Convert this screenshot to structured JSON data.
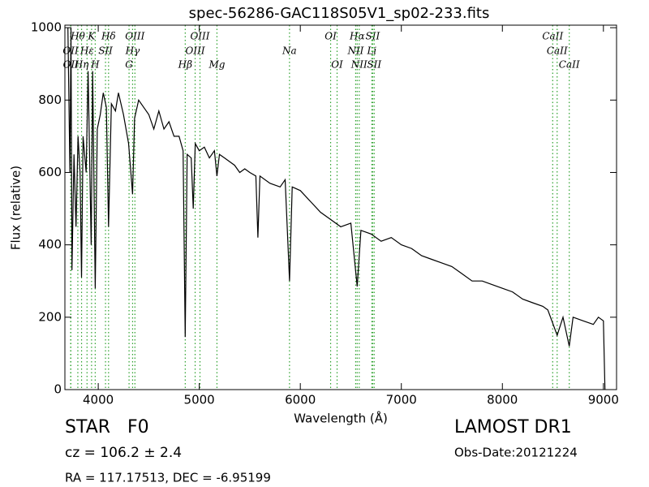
{
  "chart_data": {
    "type": "line",
    "title": "spec-56286-GAC118S05V1_sp02-233.fits",
    "x_label": "Wavelength (Å)",
    "y_label": "Flux (relative)",
    "xlim": [
      3670,
      9130
    ],
    "ylim": [
      0,
      1007
    ],
    "xticks": [
      4000,
      5000,
      6000,
      7000,
      8000,
      9000
    ],
    "yticks": [
      0,
      200,
      400,
      600,
      800,
      1000
    ],
    "series": [
      {
        "name": "Flux",
        "color": "#000000",
        "x": [
          3700,
          3720,
          3730,
          3740,
          3760,
          3780,
          3800,
          3820,
          3835,
          3850,
          3880,
          3900,
          3930,
          3945,
          3970,
          3990,
          4020,
          4050,
          4080,
          4102,
          4130,
          4170,
          4200,
          4250,
          4300,
          4340,
          4360,
          4400,
          4450,
          4500,
          4550,
          4600,
          4650,
          4700,
          4750,
          4800,
          4840,
          4861,
          4880,
          4920,
          4940,
          4960,
          5000,
          5050,
          5100,
          5150,
          5175,
          5200,
          5250,
          5300,
          5350,
          5400,
          5450,
          5500,
          5560,
          5580,
          5600,
          5700,
          5800,
          5850,
          5893,
          5920,
          6000,
          6100,
          6200,
          6300,
          6400,
          6500,
          6563,
          6600,
          6700,
          6800,
          6900,
          7000,
          7100,
          7200,
          7300,
          7400,
          7500,
          7600,
          7700,
          7800,
          7900,
          8000,
          8100,
          8200,
          8300,
          8400,
          8450,
          8542,
          8600,
          8662,
          8700,
          8800,
          8900,
          8950,
          9000,
          9015
        ],
        "values": [
          1000,
          600,
          1000,
          330,
          650,
          450,
          700,
          600,
          310,
          700,
          600,
          880,
          400,
          880,
          280,
          720,
          760,
          820,
          780,
          450,
          790,
          770,
          820,
          760,
          680,
          540,
          750,
          800,
          780,
          760,
          720,
          770,
          720,
          740,
          700,
          700,
          660,
          145,
          650,
          640,
          500,
          680,
          660,
          670,
          640,
          660,
          590,
          650,
          640,
          630,
          620,
          600,
          610,
          600,
          590,
          420,
          590,
          570,
          560,
          580,
          300,
          560,
          550,
          520,
          490,
          470,
          450,
          460,
          285,
          440,
          430,
          410,
          420,
          400,
          390,
          370,
          360,
          350,
          340,
          320,
          300,
          300,
          290,
          280,
          270,
          250,
          240,
          230,
          220,
          150,
          200,
          120,
          200,
          190,
          180,
          200,
          190,
          0
        ]
      }
    ],
    "line_color": "#2ca02c",
    "line_labels": [
      [
        {
          "label": "Hθ",
          "wavelength": 3798
        },
        {
          "label": "K",
          "wavelength": 3934
        },
        {
          "label": "Hδ",
          "wavelength": 4102
        },
        {
          "label": "OIII",
          "wavelength": 4363
        },
        {
          "label": "OIII",
          "wavelength": 5007
        },
        {
          "label": "OI",
          "wavelength": 6300
        },
        {
          "label": "Hα",
          "wavelength": 6563
        },
        {
          "label": "SII",
          "wavelength": 6716
        },
        {
          "label": "CaII",
          "wavelength": 8498
        }
      ],
      [
        {
          "label": "OII",
          "wavelength": 3727
        },
        {
          "label": "Hε",
          "wavelength": 3889
        },
        {
          "label": "SII",
          "wavelength": 4072
        },
        {
          "label": "Hγ",
          "wavelength": 4340
        },
        {
          "label": "OIII",
          "wavelength": 4959
        },
        {
          "label": "Na",
          "wavelength": 5893
        },
        {
          "label": "NII",
          "wavelength": 6548
        },
        {
          "label": "Li",
          "wavelength": 6708
        },
        {
          "label": "CaII",
          "wavelength": 8542
        }
      ],
      [
        {
          "label": "OII",
          "wavelength": 3729
        },
        {
          "label": "Hη",
          "wavelength": 3835
        },
        {
          "label": "H",
          "wavelength": 3970
        },
        {
          "label": "G",
          "wavelength": 4305
        },
        {
          "label": "Hβ",
          "wavelength": 4861
        },
        {
          "label": "Mg",
          "wavelength": 5175
        },
        {
          "label": "OI",
          "wavelength": 6364
        },
        {
          "label": "NII",
          "wavelength": 6583
        },
        {
          "label": "SII",
          "wavelength": 6731
        },
        {
          "label": "CaII",
          "wavelength": 8662
        }
      ]
    ],
    "annotations": {
      "class": "STAR   F0",
      "cz": "cz = 106.2 ± 2.4",
      "coords": "RA = 117.17513, DEC = -6.95199",
      "release": "LAMOST DR1",
      "obs_date": "Obs-Date:20121224"
    }
  }
}
